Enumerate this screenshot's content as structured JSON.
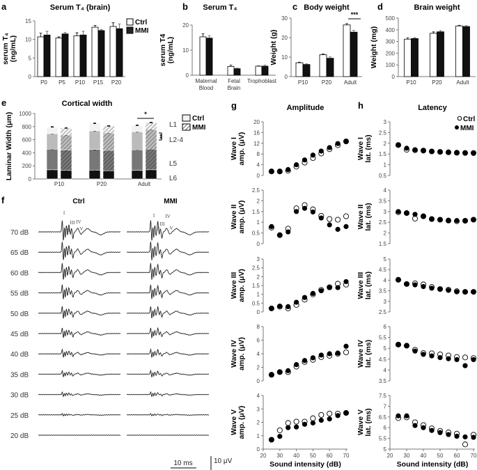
{
  "panel_letters": [
    "a",
    "b",
    "c",
    "d",
    "e",
    "f",
    "g",
    "h"
  ],
  "legend": {
    "ctrl": "Ctrl",
    "mmi": "MMI"
  },
  "colors": {
    "ctrl_fill": "#ffffff",
    "mmi_fill": "#111111",
    "axis": "#777777",
    "L6": "#111111",
    "L5": "#777777",
    "L2-4": "#bbbbbb",
    "L1": "#f2f2f2"
  },
  "chart_data": [
    {
      "panel": "a",
      "type": "bar",
      "title": "Serum T₄ (brain)",
      "ylabel": [
        "serum T₄",
        "(ng/mL)"
      ],
      "ylim": [
        0,
        15
      ],
      "yticks": [
        0,
        5,
        10,
        15
      ],
      "categories": [
        "P0",
        "P5",
        "P10",
        "P15",
        "P20"
      ],
      "series": [
        {
          "name": "Ctrl",
          "values": [
            10.7,
            10.4,
            11.0,
            13.3,
            13.5
          ],
          "errors": [
            1.0,
            0.3,
            0.8,
            0.5,
            1.0
          ]
        },
        {
          "name": "MMI",
          "values": [
            11.2,
            11.5,
            11.2,
            12.4,
            12.9
          ],
          "errors": [
            1.0,
            0.4,
            1.0,
            0.3,
            1.3
          ]
        }
      ],
      "legend": "top-right"
    },
    {
      "panel": "b",
      "type": "bar",
      "title": "Serum T₄",
      "ylabel": [
        "serum T4",
        "(ng/mL)"
      ],
      "ylim": [
        0,
        20
      ],
      "yticks": [
        0,
        10,
        20
      ],
      "categories": [
        [
          "Maternal",
          "Blood"
        ],
        [
          "Fetal",
          "Brain"
        ],
        [
          "Trophoblast"
        ]
      ],
      "series": [
        {
          "name": "Ctrl",
          "values": [
            15.3,
            3.5,
            3.6
          ],
          "errors": [
            1.2,
            0.5,
            0.1
          ]
        },
        {
          "name": "MMI",
          "values": [
            14.8,
            2.6,
            3.6
          ],
          "errors": [
            1.0,
            0.2,
            0.4
          ]
        }
      ]
    },
    {
      "panel": "c",
      "type": "bar",
      "title": "Body weight",
      "ylabel": [
        "Weight (g)"
      ],
      "ylim": [
        0,
        30
      ],
      "yticks": [
        0,
        10,
        20,
        30
      ],
      "categories": [
        "P10",
        "P20",
        "Adult"
      ],
      "series": [
        {
          "name": "Ctrl",
          "values": [
            7.1,
            11.2,
            26.5
          ],
          "errors": [
            0.3,
            0.4,
            0.7
          ]
        },
        {
          "name": "MMI",
          "values": [
            6.2,
            9.4,
            22.8
          ],
          "errors": [
            0.3,
            0.7,
            0.9
          ]
        }
      ],
      "annotation": "***"
    },
    {
      "panel": "d",
      "type": "bar",
      "title": "Brain weight",
      "ylabel": [
        "Weight (mg)"
      ],
      "ylim": [
        0,
        500
      ],
      "yticks": [
        0,
        100,
        200,
        300,
        400,
        500
      ],
      "categories": [
        "P10",
        "P20",
        "Adult"
      ],
      "series": [
        {
          "name": "Ctrl",
          "values": [
            320,
            370,
            433
          ],
          "errors": [
            12,
            12,
            6
          ]
        },
        {
          "name": "MMI",
          "values": [
            325,
            383,
            428
          ],
          "errors": [
            8,
            10,
            8
          ]
        }
      ]
    },
    {
      "panel": "e",
      "type": "bar",
      "stacked": true,
      "title": "Cortical width",
      "ylabel": [
        "Laminar Width (μm)"
      ],
      "ylim": [
        0,
        1000
      ],
      "yticks": [
        0,
        200,
        400,
        600,
        800,
        1000
      ],
      "categories": [
        "P10",
        "P20",
        "Adult"
      ],
      "layers": [
        "L6",
        "L5",
        "L2-4",
        "L1"
      ],
      "layer_labels": [
        "L1",
        "L2-4",
        "L5",
        "L6"
      ],
      "series": [
        {
          "name": "Ctrl",
          "values": [
            [
              140,
              315,
              235,
              105
            ],
            [
              135,
              315,
              285,
              115
            ],
            [
              130,
              315,
              275,
              100
            ]
          ]
        },
        {
          "name": "MMI",
          "values": [
            [
              130,
              310,
              230,
              108
            ],
            [
              125,
              310,
              265,
              110
            ],
            [
              140,
              315,
              300,
              107
            ]
          ]
        }
      ],
      "annotations": [
        "*",
        "**"
      ]
    },
    {
      "panel": "g",
      "type": "scatter",
      "title": "Amplitude",
      "xlabel": "Sound intensity (dB)",
      "xlim": [
        20,
        72
      ],
      "xticks": [
        20,
        30,
        40,
        50,
        60,
        70
      ],
      "x": [
        25,
        30,
        35,
        40,
        45,
        50,
        55,
        60,
        65,
        70
      ],
      "rows": [
        {
          "ylabel": [
            "Wave I",
            "amp. (μV)"
          ],
          "ylim": [
            0,
            20
          ],
          "yticks": [
            0,
            4,
            8,
            12,
            16,
            20
          ],
          "ctrl": [
            1.5,
            1.5,
            1.8,
            3.3,
            4.8,
            6.5,
            8.2,
            9.8,
            11.3,
            12.7
          ],
          "mmi": [
            1.6,
            1.5,
            2.2,
            4.0,
            5.8,
            7.6,
            9.1,
            10.4,
            11.9,
            12.7
          ]
        },
        {
          "ylabel": [
            "Wave II",
            "amp. (μV)"
          ],
          "ylim": [
            0,
            2.5
          ],
          "yticks": [
            0,
            0.5,
            1,
            1.5,
            2,
            2.5
          ],
          "ctrl": [
            0.75,
            0.4,
            0.7,
            1.65,
            1.8,
            1.6,
            1.3,
            1.15,
            1.12,
            1.28
          ],
          "mmi": [
            0.8,
            0.4,
            0.55,
            1.5,
            1.65,
            1.48,
            1.2,
            0.88,
            0.67,
            0.8
          ]
        },
        {
          "ylabel": [
            "Wave III",
            "amp. (μV)"
          ],
          "ylim": [
            0,
            3
          ],
          "yticks": [
            0,
            0.5,
            1,
            1.5,
            2,
            2.5,
            3
          ],
          "ctrl": [
            0.2,
            0.3,
            0.2,
            0.4,
            0.7,
            1.0,
            1.25,
            1.4,
            1.6,
            1.55
          ],
          "mmi": [
            0.2,
            0.33,
            0.3,
            0.55,
            0.82,
            1.05,
            1.2,
            1.38,
            1.38,
            1.72
          ]
        },
        {
          "ylabel": [
            "Wave IV",
            "amp. (μV)"
          ],
          "ylim": [
            0,
            8
          ],
          "yticks": [
            0,
            2,
            4,
            6,
            8
          ],
          "ctrl": [
            0.9,
            1.3,
            1.3,
            2.1,
            2.8,
            3.1,
            3.5,
            3.7,
            4.0,
            4.2
          ],
          "mmi": [
            0.9,
            1.3,
            1.5,
            2.4,
            3.0,
            3.4,
            3.8,
            4.0,
            4.1,
            5.1
          ]
        },
        {
          "ylabel": [
            "Wave V",
            "amp. (μV)"
          ],
          "ylim": [
            0,
            4
          ],
          "yticks": [
            0,
            1,
            2,
            3,
            4
          ],
          "ctrl": [
            0.7,
            1.4,
            1.95,
            2.05,
            2.05,
            2.3,
            2.55,
            2.65,
            2.65,
            2.7
          ],
          "mmi": [
            0.7,
            0.95,
            1.6,
            1.65,
            1.85,
            1.95,
            2.15,
            2.25,
            2.5,
            2.7
          ]
        }
      ]
    },
    {
      "panel": "h",
      "type": "scatter",
      "title": "Latency",
      "xlabel": "Sound intensity (dB)",
      "xlim": [
        20,
        72
      ],
      "xticks": [
        20,
        30,
        40,
        50,
        60,
        70
      ],
      "x": [
        25,
        30,
        35,
        40,
        45,
        50,
        55,
        60,
        65,
        70
      ],
      "legend": "top-right",
      "rows": [
        {
          "ylabel": [
            "Wave I",
            "lat. (ms)"
          ],
          "ylim": [
            0.5,
            3
          ],
          "yticks": [
            0.5,
            1,
            1.5,
            2,
            2.5,
            3
          ],
          "ctrl": [
            1.92,
            1.7,
            1.68,
            1.66,
            1.62,
            1.6,
            1.58,
            1.56,
            1.55,
            1.55
          ],
          "mmi": [
            1.92,
            1.77,
            1.7,
            1.66,
            1.63,
            1.6,
            1.58,
            1.56,
            1.55,
            1.53
          ]
        },
        {
          "ylabel": [
            "Wave II",
            "lat. (ms)"
          ],
          "ylim": [
            1.5,
            4
          ],
          "yticks": [
            1.5,
            2,
            2.5,
            3,
            3.5,
            4
          ],
          "ctrl": [
            2.97,
            2.93,
            2.67,
            2.78,
            2.65,
            2.62,
            2.58,
            2.55,
            2.57,
            2.62
          ],
          "mmi": [
            3.0,
            2.93,
            2.87,
            2.78,
            2.65,
            2.62,
            2.58,
            2.58,
            2.57,
            2.63
          ]
        },
        {
          "ylabel": [
            "Wave III",
            "lat. (ms)"
          ],
          "ylim": [
            2.5,
            5
          ],
          "yticks": [
            2.5,
            3,
            3.5,
            4,
            4.5,
            5
          ],
          "ctrl": [
            4.02,
            3.82,
            3.85,
            3.8,
            3.68,
            3.58,
            3.55,
            3.48,
            3.45,
            3.45
          ],
          "mmi": [
            4.02,
            3.82,
            3.78,
            3.7,
            3.62,
            3.58,
            3.52,
            3.45,
            3.45,
            3.45
          ]
        },
        {
          "ylabel": [
            "Wave IV",
            "lat. (ms)"
          ],
          "ylim": [
            3.5,
            6
          ],
          "yticks": [
            3.5,
            4,
            4.5,
            5,
            5.5,
            6
          ],
          "ctrl": [
            5.17,
            5.12,
            4.93,
            4.78,
            4.77,
            4.72,
            4.67,
            4.6,
            4.58,
            4.55
          ],
          "mmi": [
            5.18,
            5.12,
            4.87,
            4.72,
            4.65,
            4.57,
            4.52,
            4.48,
            4.2,
            4.48
          ]
        },
        {
          "ylabel": [
            "Wave V",
            "lat. (ms)"
          ],
          "ylim": [
            5,
            7.5
          ],
          "yticks": [
            5,
            5.5,
            6,
            6.5,
            7,
            7.5
          ],
          "ctrl": [
            6.45,
            6.48,
            6.25,
            6.12,
            5.97,
            5.85,
            5.78,
            5.72,
            5.22,
            5.67
          ],
          "mmi": [
            6.55,
            6.55,
            6.1,
            6.0,
            5.87,
            5.77,
            5.68,
            5.6,
            5.57,
            5.55
          ]
        }
      ]
    }
  ],
  "abr_traces": {
    "columns": [
      "Ctrl",
      "MMI"
    ],
    "levels": [
      "70 dB",
      "65 dB",
      "60 dB",
      "55 dB",
      "50 dB",
      "45 dB",
      "40 dB",
      "35 dB",
      "30 dB",
      "25 dB",
      "20 dB"
    ],
    "wave_labels": [
      "I",
      "II",
      "III",
      "IV",
      "V"
    ],
    "scale_bar": {
      "time": "10 ms",
      "voltage": "10 μV"
    }
  }
}
